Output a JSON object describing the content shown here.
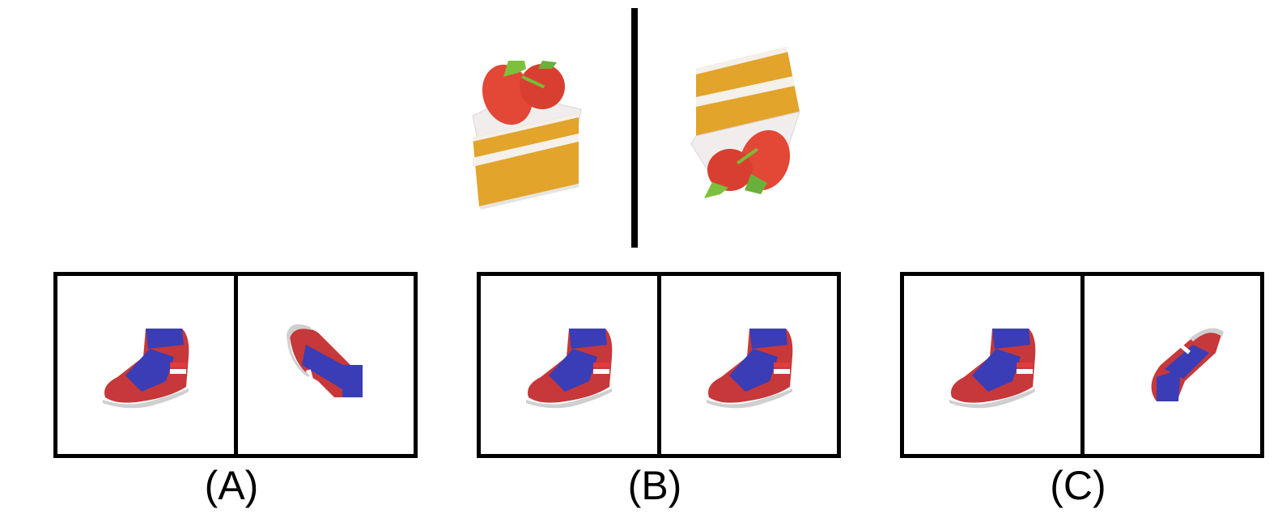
{
  "options": [
    {
      "label": "(A)"
    },
    {
      "label": "(B)"
    },
    {
      "label": "(C)"
    }
  ],
  "icons": {
    "example_object": "strawberry-cake-slice",
    "option_object": "sneaker"
  },
  "colors": {
    "cake_sponge": "#e0a32a",
    "cake_cream": "#f3f0f0",
    "strawberry": "#e04a36",
    "leaf": "#7bbf3a",
    "shoe_red": "#c6383a",
    "shoe_blue": "#3a3db5",
    "sole": "#cfcfcf"
  }
}
